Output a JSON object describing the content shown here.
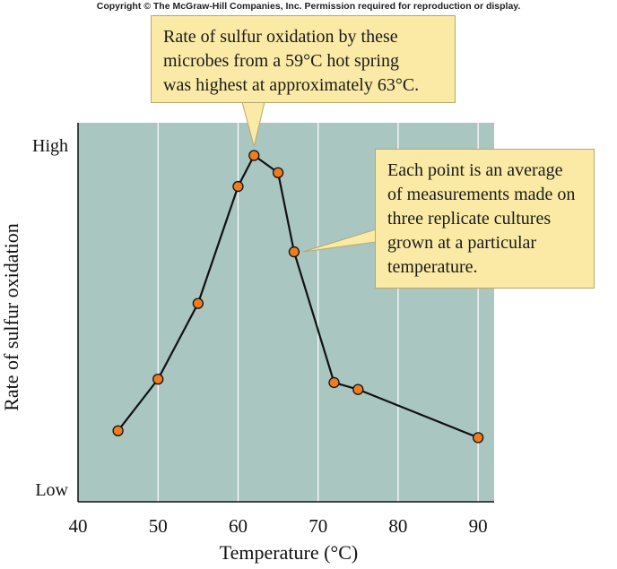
{
  "copyright": "Copyright © The McGraw-Hill Companies, Inc. Permission required for reproduction or display.",
  "chart_data": {
    "type": "line",
    "x": [
      45,
      50,
      55,
      60,
      62,
      65,
      67,
      72,
      75,
      90
    ],
    "series": [
      {
        "values": [
          0.17,
          0.32,
          0.54,
          0.88,
          0.97,
          0.92,
          0.69,
          0.31,
          0.29,
          0.15
        ]
      }
    ],
    "xlabel": "Temperature (°C)",
    "ylabel": "Rate of sulfur oxidation",
    "xlim": [
      40,
      92
    ],
    "ylim": [
      0,
      1
    ],
    "xticks": [
      40,
      50,
      60,
      70,
      80,
      90
    ],
    "yticks": [
      {
        "value": 0,
        "label": "Low"
      },
      {
        "value": 1,
        "label": "High"
      }
    ],
    "grid": "vertical",
    "colors": {
      "plot_background": "#a9c6c1",
      "gridline": "#ffffff",
      "line": "#111111",
      "marker": "#f07c20",
      "callout": "#faeaa5"
    },
    "annotations": [
      {
        "lines": [
          "Rate of sulfur oxidation by these",
          "microbes from a 59°C hot spring",
          "was highest at approximately 63°C."
        ],
        "points_to": {
          "x": 62,
          "y": 0.97
        }
      },
      {
        "lines": [
          "Each point is an average",
          "of measurements made on",
          "three replicate cultures",
          "grown at a particular",
          "temperature."
        ],
        "points_to": {
          "x": 67,
          "y": 0.69
        }
      }
    ]
  }
}
